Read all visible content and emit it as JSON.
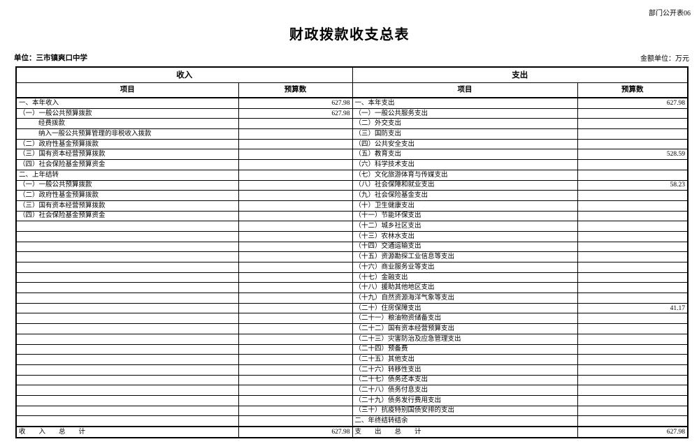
{
  "page": {
    "corner_label": "部门公开表06",
    "title": "财政拨款收支总表",
    "unit_label": "单位：三市镇爽口中学",
    "amount_unit_label": "金额单位：万元"
  },
  "table": {
    "income_header": "收入",
    "expense_header": "支出",
    "item_header_income": "项目",
    "budget_header_income": "预算数",
    "item_header_expense": "项目",
    "budget_header_expense": "预算数",
    "income_rows": [
      {
        "item": "一、本年收入",
        "value": "627.98",
        "indent": 0
      },
      {
        "item": "（一）一般公共预算拨款",
        "value": "627.98",
        "indent": 0
      },
      {
        "item": "经费拨款",
        "value": "",
        "indent": 1
      },
      {
        "item": "纳入一般公共预算管理的非税收入拨款",
        "value": "",
        "indent": 1
      },
      {
        "item": "（二）政府性基金预算拨款",
        "value": "",
        "indent": 0
      },
      {
        "item": "（三）国有资本经营预算拨款",
        "value": "",
        "indent": 0
      },
      {
        "item": "（四）社会保险基金预算资金",
        "value": "",
        "indent": 0
      },
      {
        "item": "二、上年结转",
        "value": "",
        "indent": 0
      },
      {
        "item": "（一）一般公共预算拨款",
        "value": "",
        "indent": 0
      },
      {
        "item": "（二）政府性基金预算拨款",
        "value": "",
        "indent": 0
      },
      {
        "item": "（三）国有资本经营预算拨款",
        "value": "",
        "indent": 0
      },
      {
        "item": "（四）社会保险基金预算资金",
        "value": "",
        "indent": 0
      },
      {
        "item": "",
        "value": "",
        "indent": 0
      },
      {
        "item": "",
        "value": "",
        "indent": 0
      },
      {
        "item": "",
        "value": "",
        "indent": 0
      },
      {
        "item": "",
        "value": "",
        "indent": 0
      },
      {
        "item": "",
        "value": "",
        "indent": 0
      },
      {
        "item": "",
        "value": "",
        "indent": 0
      },
      {
        "item": "",
        "value": "",
        "indent": 0
      },
      {
        "item": "",
        "value": "",
        "indent": 0
      },
      {
        "item": "",
        "value": "",
        "indent": 0
      },
      {
        "item": "",
        "value": "",
        "indent": 0
      },
      {
        "item": "",
        "value": "",
        "indent": 0
      },
      {
        "item": "",
        "value": "",
        "indent": 0
      },
      {
        "item": "",
        "value": "",
        "indent": 0
      },
      {
        "item": "",
        "value": "",
        "indent": 0
      },
      {
        "item": "",
        "value": "",
        "indent": 0
      },
      {
        "item": "",
        "value": "",
        "indent": 0
      },
      {
        "item": "",
        "value": "",
        "indent": 0
      },
      {
        "item": "",
        "value": "",
        "indent": 0
      },
      {
        "item": "",
        "value": "",
        "indent": 0
      },
      {
        "item": "",
        "value": "",
        "indent": 0
      }
    ],
    "expense_rows": [
      {
        "item": "一、本年支出",
        "value": "627.98",
        "indent": 0
      },
      {
        "item": "（一）一般公共服务支出",
        "value": "",
        "indent": 0
      },
      {
        "item": "（二）外交支出",
        "value": "",
        "indent": 0
      },
      {
        "item": "（三）国防支出",
        "value": "",
        "indent": 0
      },
      {
        "item": "（四）公共安全支出",
        "value": "",
        "indent": 0
      },
      {
        "item": "（五）教育支出",
        "value": "528.59",
        "indent": 0
      },
      {
        "item": "（六）科学技术支出",
        "value": "",
        "indent": 0
      },
      {
        "item": "（七）文化旅游体育与传媒支出",
        "value": "",
        "indent": 0
      },
      {
        "item": "（八）社会保障和就业支出",
        "value": "58.23",
        "indent": 0
      },
      {
        "item": "（九）社会保险基金支出",
        "value": "",
        "indent": 0
      },
      {
        "item": "（十）卫生健康支出",
        "value": "",
        "indent": 0
      },
      {
        "item": "（十一）节能环保支出",
        "value": "",
        "indent": 0
      },
      {
        "item": "（十二）城乡社区支出",
        "value": "",
        "indent": 0
      },
      {
        "item": "（十三）农林水支出",
        "value": "",
        "indent": 0
      },
      {
        "item": "（十四）交通运输支出",
        "value": "",
        "indent": 0
      },
      {
        "item": "（十五）资源勘探工业信息等支出",
        "value": "",
        "indent": 0
      },
      {
        "item": "（十六）商业服务业等支出",
        "value": "",
        "indent": 0
      },
      {
        "item": "（十七）金融支出",
        "value": "",
        "indent": 0
      },
      {
        "item": "（十八）援助其他地区支出",
        "value": "",
        "indent": 0
      },
      {
        "item": "（十九）自然资源海洋气象等支出",
        "value": "",
        "indent": 0
      },
      {
        "item": "（二十）住房保障支出",
        "value": "41.17",
        "indent": 0
      },
      {
        "item": "（二十一）粮油物资储备支出",
        "value": "",
        "indent": 0
      },
      {
        "item": "（二十二）国有资本经营预算支出",
        "value": "",
        "indent": 0
      },
      {
        "item": "（二十三）灾害防治及应急管理支出",
        "value": "",
        "indent": 0
      },
      {
        "item": "（二十四）预备费",
        "value": "",
        "indent": 0
      },
      {
        "item": "（二十五）其他支出",
        "value": "",
        "indent": 0
      },
      {
        "item": "（二十六）转移性支出",
        "value": "",
        "indent": 0
      },
      {
        "item": "（二十七）债务还本支出",
        "value": "",
        "indent": 0
      },
      {
        "item": "（二十八）债务付息支出",
        "value": "",
        "indent": 0
      },
      {
        "item": "（二十九）债务发行费用支出",
        "value": "",
        "indent": 0
      },
      {
        "item": "（三十）抗疫特别国债安排的支出",
        "value": "",
        "indent": 0
      },
      {
        "item": "二、年终结转结余",
        "value": "",
        "indent": 0
      }
    ],
    "income_total": {
      "label": "收　　入　　总　　计",
      "value": "627.98"
    },
    "expense_total": {
      "label": "支　　出　　总　　计",
      "value": "627.98"
    }
  }
}
